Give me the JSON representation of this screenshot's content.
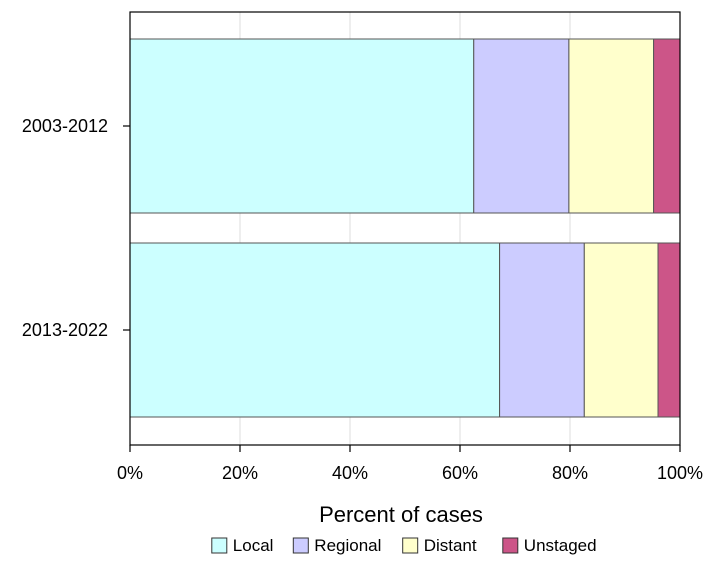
{
  "chart_data": {
    "type": "bar",
    "orientation": "horizontal",
    "stacked": true,
    "categories": [
      "2003-2012",
      "2013-2022"
    ],
    "series": [
      {
        "name": "Local",
        "values": [
          62.5,
          67.2
        ],
        "color": "#ccffff"
      },
      {
        "name": "Regional",
        "values": [
          17.3,
          15.4
        ],
        "color": "#ccccff"
      },
      {
        "name": "Distant",
        "values": [
          15.4,
          13.4
        ],
        "color": "#ffffcc"
      },
      {
        "name": "Unstaged",
        "values": [
          4.8,
          4.0
        ],
        "color": "#cc5588"
      }
    ],
    "xlabel": "Percent of cases",
    "ylabel": "",
    "xlim": [
      0,
      100
    ],
    "x_ticks": [
      "0%",
      "20%",
      "40%",
      "60%",
      "80%",
      "100%"
    ],
    "grid": "vertical",
    "legend": "bottom"
  }
}
